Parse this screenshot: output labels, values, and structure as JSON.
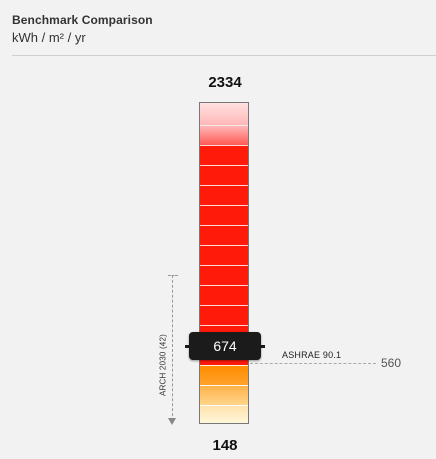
{
  "header": {
    "title": "Benchmark Comparison",
    "units": "kWh / m² / yr"
  },
  "scale": {
    "max": "2334",
    "min": "148"
  },
  "marker": {
    "value": "674"
  },
  "benchmarks": {
    "arch2030": {
      "label": "ARCH 2030 (42)"
    },
    "ashrae": {
      "label": "ASHRAE 90.1",
      "value": "560"
    }
  },
  "colors": {
    "background": "#f2f2f2",
    "high_pink": "#ffb8b8",
    "red": "#ff1a0a",
    "orange": "#ff8c00",
    "light_yellow": "#fff6d9",
    "marker": "#1b1b1b"
  }
}
